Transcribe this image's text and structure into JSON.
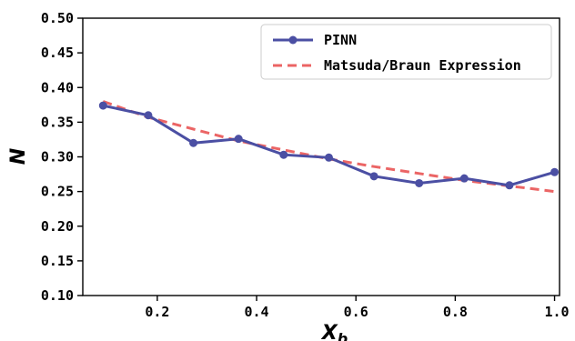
{
  "chart_data": {
    "type": "line",
    "title": "",
    "xlabel": "X",
    "xlabel_sub": "b",
    "ylabel": "N",
    "xlim": [
      0.05,
      1.01
    ],
    "ylim": [
      0.1,
      0.5
    ],
    "xticks": [
      0.2,
      0.4,
      0.6,
      0.8,
      1.0
    ],
    "xtick_labels": [
      "0.2",
      "0.4",
      "0.6",
      "0.8",
      "1.0"
    ],
    "yticks": [
      0.1,
      0.15,
      0.2,
      0.25,
      0.3,
      0.35,
      0.4,
      0.45,
      0.5
    ],
    "ytick_labels": [
      "0.10",
      "0.15",
      "0.20",
      "0.25",
      "0.30",
      "0.35",
      "0.40",
      "0.45",
      "0.50"
    ],
    "grid": false,
    "legend_position": "top-right",
    "series": [
      {
        "name": "PINN",
        "style": "line-markers",
        "color": "#4b4fa3",
        "x": [
          0.0909,
          0.1818,
          0.2727,
          0.3636,
          0.4545,
          0.5455,
          0.6364,
          0.7273,
          0.8182,
          0.9091,
          1.0
        ],
        "y": [
          0.374,
          0.36,
          0.32,
          0.326,
          0.303,
          0.299,
          0.272,
          0.262,
          0.269,
          0.259,
          0.278
        ]
      },
      {
        "name": "Matsuda/Braun Expression",
        "style": "dashed",
        "color": "#e84a4a",
        "x": [
          0.0909,
          0.1818,
          0.2727,
          0.3636,
          0.4545,
          0.5455,
          0.6364,
          0.7273,
          0.8182,
          0.9091,
          1.0
        ],
        "y": [
          0.38,
          0.357,
          0.34,
          0.323,
          0.31,
          0.297,
          0.286,
          0.276,
          0.266,
          0.258,
          0.25
        ]
      }
    ]
  }
}
